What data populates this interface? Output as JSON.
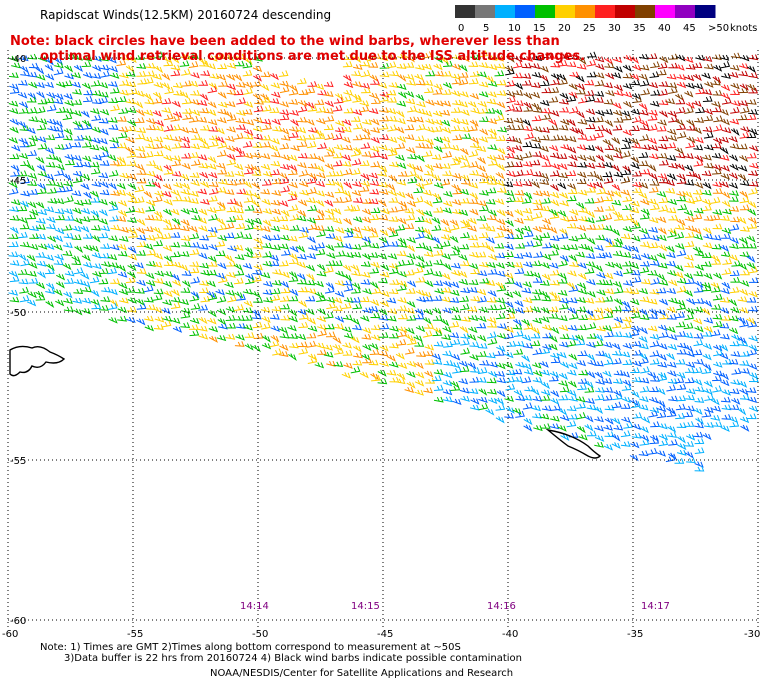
{
  "header": {
    "title": "Rapidscat Winds(12.5KM) 20160724 descending",
    "note_line1": "Note: black circles have been added to the wind barbs, wherever less than",
    "note_line2": "optimal wind retrieval conditions are met due to the ISS altitude changes."
  },
  "legend": {
    "ticks": [
      "0",
      "5",
      "10",
      "15",
      "20",
      "25",
      "30",
      "35",
      "40",
      "45",
      ">50"
    ],
    "unit": "knots",
    "colors": [
      "#333333",
      "#777777",
      "#00b0ff",
      "#0060ff",
      "#00c000",
      "#ffd000",
      "#ff9000",
      "#ff2020",
      "#c00000",
      "#804000",
      "#ff00ff",
      "#9000c0",
      "#000080"
    ]
  },
  "map": {
    "lat_labels": [
      "-40",
      "-45",
      "-50",
      "-55",
      "-60"
    ],
    "lon_labels": [
      "-60",
      "-55",
      "-50",
      "-45",
      "-40",
      "-35",
      "-30"
    ],
    "times": [
      "14:14",
      "14:15",
      "14:16",
      "14:17"
    ]
  },
  "footer": {
    "line1": "Note: 1) Times are GMT 2)Times along bottom correspond to measurement at ~50S",
    "line2": "3)Data buffer is 22 hrs from 20160724 4) Black wind barbs indicate possible contamination",
    "credit": "NOAA/NESDIS/Center for Satellite Applications and Research"
  }
}
